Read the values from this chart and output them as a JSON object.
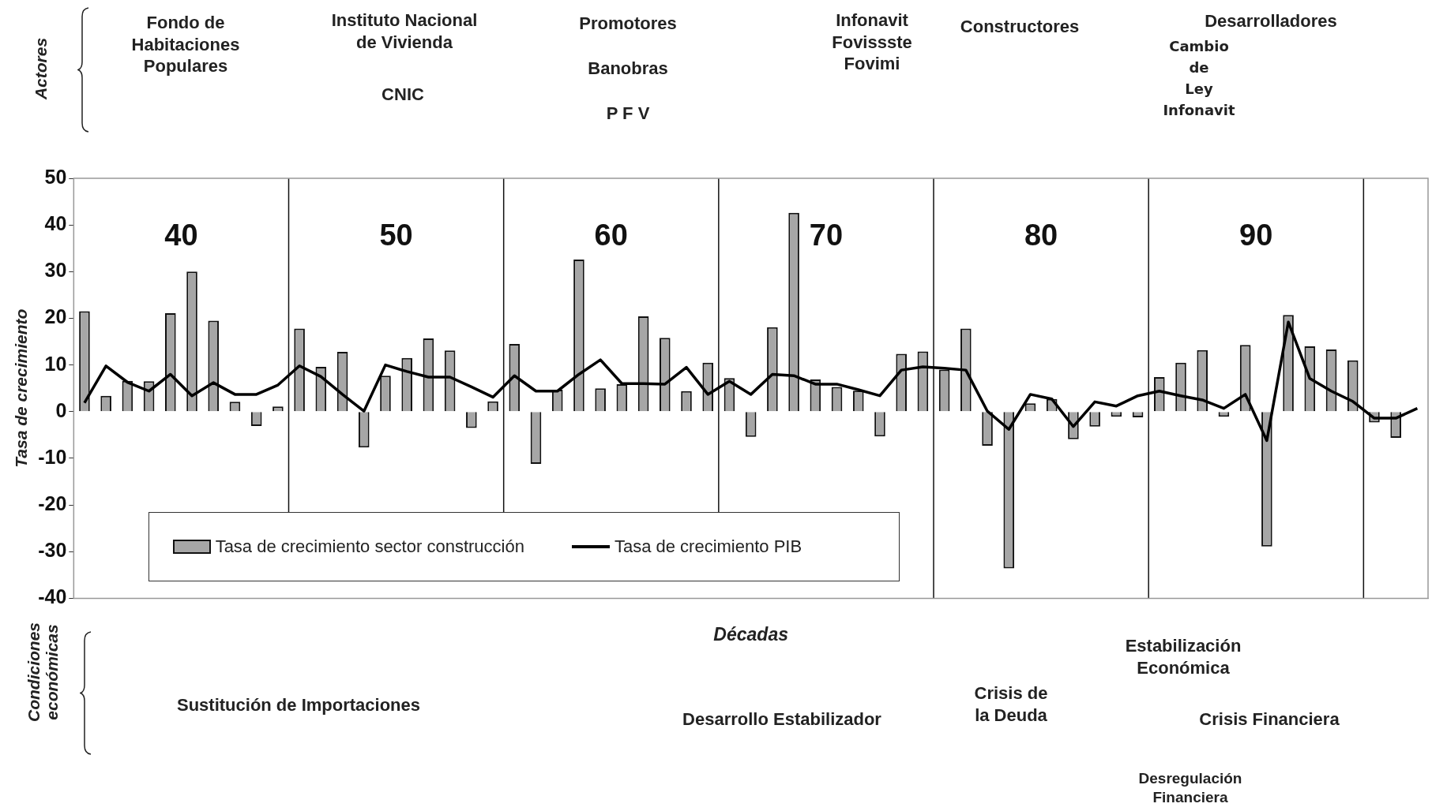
{
  "chart_data": {
    "type": "bar",
    "xlabel": "Décadas",
    "ylabel": "Tasa de crecimiento",
    "categories": [
      null,
      null,
      null,
      null,
      null,
      null,
      null,
      null,
      null,
      null,
      null,
      null,
      null,
      null,
      null,
      null,
      null,
      null,
      null,
      null,
      null,
      null,
      null,
      null,
      null,
      null,
      null,
      null,
      null,
      null,
      null,
      null,
      null,
      null,
      null,
      null,
      null,
      null,
      null,
      null,
      null,
      null,
      null,
      null,
      null,
      null,
      null,
      null,
      null,
      null,
      null,
      null,
      null,
      null,
      null,
      null,
      null,
      null,
      null,
      null,
      null,
      null,
      null
    ],
    "series": [
      {
        "name": "Tasa de crecimiento sector construcción",
        "color": "#a6a6a6",
        "values": [
          21.5,
          3.4,
          6.6,
          6.5,
          21.1,
          30.0,
          19.5,
          2.1,
          -3.1,
          1.1,
          17.8,
          9.6,
          12.8,
          -7.7,
          7.7,
          11.5,
          15.7,
          13.1,
          -3.5,
          2.2,
          14.5,
          -11.2,
          4.7,
          32.6,
          5.0,
          5.9,
          20.4,
          15.8,
          4.4,
          10.5,
          7.2,
          -5.4,
          18.1,
          42.6,
          6.9,
          5.3,
          4.5,
          -5.3,
          12.4,
          12.9,
          9.0,
          17.8,
          -7.3,
          -33.6,
          1.8,
          2.7,
          -5.9,
          -3.2,
          -1.1,
          -1.2,
          7.4,
          10.5,
          13.2,
          -1.1,
          14.3,
          -28.9,
          20.7,
          14.0,
          13.3,
          11.0,
          -2.3,
          -5.6,
          null
        ]
      },
      {
        "type": "line",
        "name": "Tasa de crecimiento PIB",
        "color": "#000000",
        "values": [
          1.9,
          9.8,
          6.3,
          4.4,
          8.0,
          3.4,
          6.2,
          3.7,
          3.7,
          5.7,
          9.8,
          7.5,
          3.7,
          0.1,
          10.0,
          8.6,
          7.4,
          7.4,
          5.3,
          3.1,
          7.7,
          4.4,
          4.4,
          8.0,
          11.1,
          6.0,
          6.0,
          5.9,
          9.5,
          3.7,
          6.5,
          3.7,
          8.0,
          7.7,
          5.9,
          5.9,
          4.7,
          3.4,
          8.9,
          9.6,
          9.3,
          8.9,
          0.1,
          -3.8,
          3.7,
          2.7,
          -3.2,
          2.1,
          1.2,
          3.4,
          4.4,
          3.4,
          2.5,
          0.7,
          3.7,
          -6.2,
          19.2,
          7.1,
          4.4,
          2.2,
          -1.4,
          -1.4,
          0.7
        ]
      }
    ],
    "ylim": [
      -40,
      50
    ],
    "yticks": [
      -40,
      -30,
      -20,
      -10,
      0,
      10,
      20,
      30,
      40,
      50
    ],
    "legend": "bottom left",
    "marker": "none",
    "annotations": [
      "Actores",
      "Fondo de\nHabitaciones\nPopulares",
      "Instituto Nacional\nde Vivienda",
      "CNIC",
      "Promotores",
      "Banobras",
      "P F V",
      "Infonavit\nFovissste\nFovimi",
      "Constructores",
      "Desarrolladores",
      "Cambio\nde\nLey\nInfonavit",
      "Condiciones\neconómicas",
      "Sustitución de Importaciones",
      "Desarrollo Estabilizador",
      "Crisis de\nla Deuda",
      "Estabilización\nEconómica",
      "Crisis  Financiera",
      "Desregulación\nFinanciera",
      "40",
      "50",
      "60",
      "70",
      "80",
      "90"
    ]
  }
}
